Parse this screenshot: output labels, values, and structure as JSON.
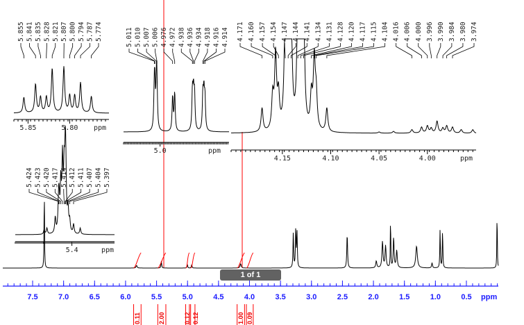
{
  "chart_data": {
    "type": "line",
    "title": "",
    "xlabel": "ppm",
    "main": {
      "xlim": [
        7.98,
        -0.02
      ],
      "ticks": [
        7.5,
        7.0,
        6.5,
        6.0,
        5.5,
        5.0,
        4.5,
        4.0,
        3.5,
        3.0,
        2.5,
        2.0,
        1.5,
        1.0,
        0.5
      ],
      "tick_labels": [
        "7.5",
        "7.0",
        "6.5",
        "6.0",
        "5.5",
        "5.0",
        "4.5",
        "4.0",
        "3.5",
        "3.0",
        "2.5",
        "2.0",
        "1.5",
        "1.0",
        "0.5"
      ],
      "unit": "ppm",
      "peaks": [
        [
          7.31,
          1.0,
          0.004
        ],
        [
          5.82,
          0.03,
          0.01
        ],
        [
          5.42,
          0.08,
          0.006
        ],
        [
          5.0,
          0.04,
          0.006
        ],
        [
          4.93,
          0.04,
          0.006
        ],
        [
          4.14,
          0.05,
          0.01
        ],
        [
          3.29,
          0.4,
          0.006
        ],
        [
          3.25,
          0.45,
          0.006
        ],
        [
          3.23,
          0.4,
          0.006
        ],
        [
          2.42,
          0.4,
          0.007
        ],
        [
          1.95,
          0.08,
          0.01
        ],
        [
          1.85,
          0.3,
          0.01
        ],
        [
          1.8,
          0.25,
          0.01
        ],
        [
          1.72,
          0.62,
          0.004
        ],
        [
          1.67,
          0.35,
          0.008
        ],
        [
          1.62,
          0.2,
          0.01
        ],
        [
          1.3,
          0.25,
          0.015
        ],
        [
          1.05,
          0.06,
          0.008
        ],
        [
          0.92,
          0.45,
          0.005
        ],
        [
          0.88,
          0.45,
          0.005
        ],
        [
          0.0,
          0.7,
          0.004
        ]
      ]
    },
    "integrals": [
      {
        "label": "0.11",
        "range": [
          5.87,
          5.75
        ]
      },
      {
        "label": "2.00",
        "range": [
          5.48,
          5.35
        ]
      },
      {
        "label": "0.12",
        "range": [
          5.03,
          4.97
        ]
      },
      {
        "label": "0.12",
        "range": [
          4.95,
          4.88
        ]
      },
      {
        "label": "1.00",
        "range": [
          4.2,
          4.08
        ]
      },
      {
        "label": "0.09",
        "range": [
          4.05,
          3.94
        ]
      }
    ],
    "insets": [
      {
        "id": "a",
        "tick_labels": [
          "5.85",
          "5.80"
        ],
        "ticks": [
          5.85,
          5.8
        ],
        "unit": "ppm",
        "peaks": [
          [
            5.855,
            0.3
          ],
          [
            5.841,
            0.55
          ],
          [
            5.835,
            0.3
          ],
          [
            5.828,
            0.3
          ],
          [
            5.821,
            0.85
          ],
          [
            5.807,
            0.88
          ],
          [
            5.8,
            0.33
          ],
          [
            5.794,
            0.33
          ],
          [
            5.787,
            0.58
          ],
          [
            5.774,
            0.32
          ]
        ],
        "labels": [
          "5.855",
          "5.841",
          "5.835",
          "5.828",
          "5.821",
          "5.807",
          "5.800",
          "5.794",
          "5.787",
          "5.774"
        ]
      },
      {
        "id": "b",
        "tick_labels": [
          "5.0"
        ],
        "ticks": [
          5.0
        ],
        "unit": "ppm",
        "peaks": [
          [
            5.011,
            0.55
          ],
          [
            5.01,
            0.45
          ],
          [
            5.007,
            0.6
          ],
          [
            5.006,
            0.5
          ],
          [
            4.976,
            0.5
          ],
          [
            4.972,
            0.55
          ],
          [
            4.938,
            0.55
          ],
          [
            4.936,
            0.5
          ],
          [
            4.934,
            0.5
          ],
          [
            4.918,
            0.5
          ],
          [
            4.916,
            0.5
          ],
          [
            4.914,
            0.45
          ]
        ],
        "labels": [
          "5.011",
          "5.010",
          "5.007",
          "5.006",
          "4.976",
          "4.972",
          "4.938",
          "4.936",
          "4.934",
          "4.918",
          "4.916",
          "4.914"
        ]
      },
      {
        "id": "c",
        "tick_labels": [
          "4.15",
          "4.10",
          "4.05",
          "4.00"
        ],
        "ticks": [
          4.15,
          4.1,
          4.05,
          4.0
        ],
        "unit": "ppm",
        "peaks": [
          [
            4.171,
            0.2
          ],
          [
            4.16,
            0.28
          ],
          [
            4.157,
            0.62
          ],
          [
            4.154,
            0.28
          ],
          [
            4.147,
            1.0
          ],
          [
            4.144,
            1.0
          ],
          [
            4.141,
            1.0
          ],
          [
            4.134,
            1.0
          ],
          [
            4.131,
            1.0
          ],
          [
            4.128,
            1.0
          ],
          [
            4.12,
            0.28
          ],
          [
            4.117,
            0.58
          ],
          [
            4.115,
            0.28
          ],
          [
            4.104,
            0.2
          ],
          [
            4.05,
            0.01
          ],
          [
            4.035,
            0.015
          ],
          [
            4.016,
            0.03
          ],
          [
            4.006,
            0.05
          ],
          [
            4.0,
            0.06
          ],
          [
            3.996,
            0.04
          ],
          [
            3.99,
            0.1
          ],
          [
            3.984,
            0.04
          ],
          [
            3.98,
            0.06
          ],
          [
            3.974,
            0.05
          ],
          [
            3.965,
            0.03
          ],
          [
            3.953,
            0.03
          ]
        ],
        "labels": [
          "4.171",
          "4.160",
          "4.157",
          "4.154",
          "4.147",
          "4.144",
          "4.141",
          "4.134",
          "4.131",
          "4.128",
          "4.120",
          "4.117",
          "4.115",
          "4.104",
          "4.016",
          "4.006",
          "4.000",
          "3.996",
          "3.990",
          "3.984",
          "3.980",
          "3.974"
        ]
      },
      {
        "id": "d",
        "tick_labels": [
          "5.4"
        ],
        "ticks": [
          5.4
        ],
        "unit": "ppm",
        "peaks": [
          [
            5.45,
            0.06
          ],
          [
            5.445,
            0.08
          ],
          [
            5.43,
            0.2
          ],
          [
            5.424,
            0.35
          ],
          [
            5.423,
            0.3
          ],
          [
            5.42,
            0.6
          ],
          [
            5.417,
            0.9
          ],
          [
            5.414,
            0.7
          ],
          [
            5.412,
            0.8
          ],
          [
            5.411,
            0.6
          ],
          [
            5.407,
            0.3
          ],
          [
            5.404,
            0.15
          ],
          [
            5.397,
            0.12
          ],
          [
            5.385,
            0.08
          ]
        ],
        "labels": [
          "5.424",
          "5.423",
          "5.420",
          "5.417",
          "5.414",
          "5.412",
          "5.411",
          "5.407",
          "5.404",
          "5.397"
        ]
      }
    ]
  },
  "pager": {
    "label": "1 of 1"
  },
  "colors": {
    "axis": "#1a1aff",
    "trace": "#000000",
    "integral": "#ff0000"
  }
}
